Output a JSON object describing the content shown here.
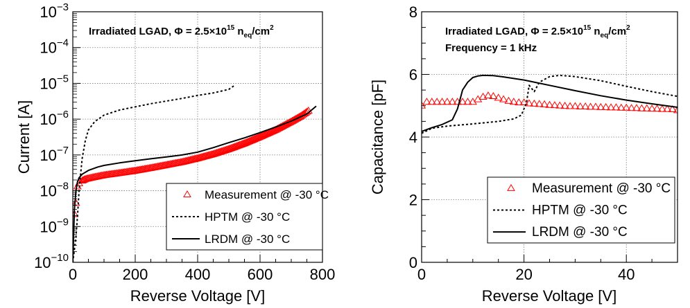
{
  "chart_data": [
    {
      "type": "line",
      "title": "",
      "xlabel": "Reverse Voltage [V]",
      "ylabel": "Current [A]",
      "xlim": [
        0,
        800
      ],
      "ylim": [
        1e-10,
        0.001
      ],
      "yscale": "log",
      "grid": true,
      "x_ticks": [
        0,
        200,
        400,
        600,
        800
      ],
      "x_tick_labels": [
        "0",
        "200",
        "400",
        "600",
        "800"
      ],
      "y_ticks": [
        -10,
        -9,
        -8,
        -7,
        -6,
        -5,
        -4,
        -3
      ],
      "y_tick_labels": [
        {
          "base": "10",
          "exp": "−10"
        },
        {
          "base": "10",
          "exp": "−9"
        },
        {
          "base": "10",
          "exp": "−8"
        },
        {
          "base": "10",
          "exp": "−7"
        },
        {
          "base": "10",
          "exp": "−6"
        },
        {
          "base": "10",
          "exp": "−5"
        },
        {
          "base": "10",
          "exp": "−4"
        },
        {
          "base": "10",
          "exp": "−3"
        }
      ],
      "annotations": [
        {
          "text": "Irradiated LGAD, Φ = 2.5×10",
          "sup": "15",
          "after": " n",
          "sub": "eq",
          "tail": "/cm",
          "sup2": "2"
        }
      ],
      "legend": {
        "position": "bottom-right",
        "entries": [
          {
            "label": "Measurement @ -30 °C",
            "style": "red-triangle"
          },
          {
            "label": "HPTM @ -30 °C",
            "style": "dashed"
          },
          {
            "label": "LRDM @ -30 °C",
            "style": "solid"
          }
        ]
      },
      "series": [
        {
          "name": "Measurement @ -30 °C",
          "color": "#ff0000",
          "marker": "triangle-open",
          "x": [
            5,
            10,
            15,
            20,
            30,
            40,
            60,
            80,
            100,
            150,
            200,
            250,
            300,
            350,
            400,
            450,
            500,
            550,
            600,
            650,
            700,
            730,
            755
          ],
          "y": [
            2.2e-09,
            4.5e-09,
            1.3e-08,
            1.6e-08,
            1.9e-08,
            2.1e-08,
            2.3e-08,
            2.5e-08,
            2.7e-08,
            3.1e-08,
            3.6e-08,
            4.3e-08,
            5.2e-08,
            6.3e-08,
            8e-08,
            1.05e-07,
            1.45e-07,
            2.1e-07,
            3.2e-07,
            5e-07,
            8.5e-07,
            1.2e-06,
            1.7e-06
          ]
        },
        {
          "name": "HPTM @ -30 °C",
          "color": "#000000",
          "style": "dashed",
          "x": [
            0,
            10,
            15,
            20,
            25,
            30,
            40,
            50,
            70,
            100,
            150,
            200,
            250,
            300,
            350,
            400,
            450,
            500,
            520
          ],
          "y": [
            1e-10,
            5e-10,
            2e-09,
            1e-08,
            3e-08,
            8e-08,
            2.5e-07,
            5e-07,
            8.5e-07,
            1.3e-06,
            1.8e-06,
            2.2e-06,
            2.7e-06,
            3.2e-06,
            3.8e-06,
            4.6e-06,
            5.4e-06,
            6.8e-06,
            9e-06
          ]
        },
        {
          "name": "LRDM @ -30 °C",
          "color": "#000000",
          "style": "solid",
          "x": [
            0,
            5,
            10,
            15,
            20,
            30,
            50,
            80,
            100,
            150,
            200,
            250,
            300,
            350,
            400,
            450,
            500,
            550,
            600,
            650,
            700,
            750,
            780
          ],
          "y": [
            1e-10,
            3e-09,
            1e-08,
            1.8e-08,
            2.3e-08,
            2.9e-08,
            3.7e-08,
            4.6e-08,
            5.1e-08,
            6e-08,
            6.9e-08,
            7.8e-08,
            8.8e-08,
            1e-07,
            1.2e-07,
            1.6e-07,
            2.2e-07,
            3e-07,
            4.2e-07,
            6e-07,
            8.8e-07,
            1.4e-06,
            2.3e-06
          ]
        }
      ]
    },
    {
      "type": "line",
      "title": "",
      "xlabel": "Reverse Voltage [V]",
      "ylabel": "Capacitance [pF]",
      "xlim": [
        0,
        50
      ],
      "ylim": [
        0,
        8
      ],
      "grid": true,
      "x_ticks": [
        0,
        20,
        40
      ],
      "x_tick_labels": [
        "0",
        "20",
        "40"
      ],
      "y_ticks": [
        0,
        2,
        4,
        6,
        8
      ],
      "y_tick_labels": [
        "0",
        "2",
        "4",
        "6",
        "8"
      ],
      "annotations": [
        {
          "text": "Irradiated LGAD, Φ = 2.5×10",
          "sup": "15",
          "after": " n",
          "sub": "eq",
          "tail": "/cm",
          "sup2": "2"
        },
        {
          "text": "Frequency = 1 kHz"
        }
      ],
      "legend": {
        "position": "bottom-right",
        "entries": [
          {
            "label": "Measurement @ -30 °C",
            "style": "red-triangle"
          },
          {
            "label": "HPTM @ -30 °C",
            "style": "dashed"
          },
          {
            "label": "LRDM @ -30 °C",
            "style": "solid"
          }
        ]
      },
      "series": [
        {
          "name": "Measurement @ -30 °C",
          "color": "#ff0000",
          "marker": "triangle-open",
          "x": [
            0,
            1,
            2,
            3,
            4,
            5,
            6,
            7,
            8,
            9,
            10,
            11,
            12,
            13,
            14,
            15,
            16,
            17,
            18,
            19,
            20,
            21,
            22,
            23,
            24,
            25,
            26,
            27,
            28,
            29,
            30,
            31,
            32,
            33,
            34,
            35,
            36,
            37,
            38,
            39,
            40,
            41,
            42,
            43,
            44,
            45,
            46,
            47,
            48,
            49,
            50
          ],
          "y": [
            5.0,
            5.12,
            5.12,
            5.12,
            5.12,
            5.12,
            5.12,
            5.12,
            5.12,
            5.12,
            5.12,
            5.2,
            5.28,
            5.32,
            5.3,
            5.25,
            5.2,
            5.15,
            5.12,
            5.1,
            5.1,
            5.07,
            5.06,
            5.05,
            5.04,
            5.02,
            5.01,
            5.0,
            4.99,
            4.98,
            4.98,
            4.97,
            4.97,
            4.96,
            4.96,
            4.95,
            4.95,
            4.94,
            4.94,
            4.93,
            4.93,
            4.92,
            4.92,
            4.91,
            4.91,
            4.9,
            4.9,
            4.89,
            4.89,
            4.88,
            4.85
          ]
        },
        {
          "name": "HPTM @ -30 °C",
          "color": "#000000",
          "style": "dashed",
          "x": [
            0,
            2,
            5,
            10,
            15,
            18,
            19.5,
            20.5,
            21,
            22,
            23,
            25,
            27,
            30,
            35,
            40,
            45,
            50
          ],
          "y": [
            4.12,
            4.28,
            4.35,
            4.42,
            4.5,
            4.58,
            4.7,
            5.1,
            5.65,
            5.45,
            5.75,
            5.93,
            5.97,
            5.93,
            5.8,
            5.62,
            5.45,
            5.3
          ]
        },
        {
          "name": "LRDM @ -30 °C",
          "color": "#000000",
          "style": "solid",
          "x": [
            0,
            2,
            4,
            6,
            7,
            7.5,
            8,
            9,
            10,
            11,
            12,
            14,
            16,
            20,
            25,
            30,
            35,
            40,
            45,
            50
          ],
          "y": [
            4.18,
            4.3,
            4.4,
            4.55,
            4.9,
            5.2,
            5.5,
            5.75,
            5.9,
            5.95,
            5.97,
            5.96,
            5.92,
            5.82,
            5.65,
            5.48,
            5.32,
            5.18,
            5.06,
            4.95
          ]
        }
      ]
    }
  ]
}
